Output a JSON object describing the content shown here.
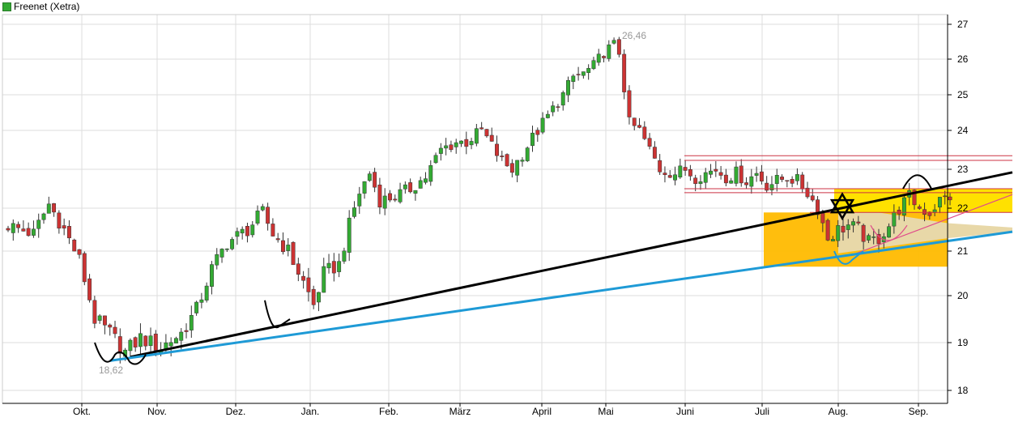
{
  "legend": {
    "label": "Freenet (Xetra)",
    "color": "#33aa33"
  },
  "chart_data": {
    "type": "candlestick",
    "title": "",
    "series_name": "Freenet (Xetra)",
    "colors": {
      "up": "#33aa33",
      "down": "#cc3333",
      "grid": "#dddddd",
      "support": "#1e9ad6",
      "trend": "#000000",
      "channel": "#cc3344",
      "fill_dark": "#ffbb00",
      "fill_light": "#ffe100",
      "fill_tan": "#e8d8a8"
    },
    "ylim": [
      17.8,
      27.3
    ],
    "y_ticks": [
      18,
      19,
      20,
      21,
      22,
      23,
      24,
      25,
      26,
      27
    ],
    "x_ticks": [
      "Okt.",
      "Nov.",
      "Dez.",
      "Jan.",
      "Feb.",
      "März",
      "April",
      "Mai",
      "Juni",
      "Juli",
      "Aug.",
      "Sep."
    ],
    "grid": true,
    "annotations": [
      {
        "text": "26,46",
        "type": "high"
      },
      {
        "text": "18,62",
        "type": "low"
      }
    ],
    "waypoints": [
      [
        0,
        21.6
      ],
      [
        5,
        21.4
      ],
      [
        8,
        22.1
      ],
      [
        11,
        21.5
      ],
      [
        14,
        20.8
      ],
      [
        17,
        19.5
      ],
      [
        20,
        19.2
      ],
      [
        23,
        18.8
      ],
      [
        26,
        19.1
      ],
      [
        30,
        18.9
      ],
      [
        34,
        19.2
      ],
      [
        37,
        19.7
      ],
      [
        40,
        20.6
      ],
      [
        43,
        21.2
      ],
      [
        47,
        21.5
      ],
      [
        50,
        21.9
      ],
      [
        52,
        21.4
      ],
      [
        55,
        21.0
      ],
      [
        58,
        20.3
      ],
      [
        60,
        19.8
      ],
      [
        62,
        20.5
      ],
      [
        65,
        20.7
      ],
      [
        67,
        21.6
      ],
      [
        69,
        22.4
      ],
      [
        71,
        22.9
      ],
      [
        73,
        22.2
      ],
      [
        76,
        22.3
      ],
      [
        79,
        22.5
      ],
      [
        82,
        22.8
      ],
      [
        85,
        23.5
      ],
      [
        88,
        23.7
      ],
      [
        90,
        23.7
      ],
      [
        93,
        24.0
      ],
      [
        95,
        23.6
      ],
      [
        97,
        23.2
      ],
      [
        99,
        23.0
      ],
      [
        101,
        23.4
      ],
      [
        103,
        23.8
      ],
      [
        105,
        24.2
      ],
      [
        107,
        24.6
      ],
      [
        109,
        25.0
      ],
      [
        111,
        25.5
      ],
      [
        113,
        25.6
      ],
      [
        115,
        25.8
      ],
      [
        117,
        26.2
      ],
      [
        119,
        26.4
      ],
      [
        120,
        26.2
      ],
      [
        121,
        25.2
      ],
      [
        122,
        24.2
      ],
      [
        124,
        24.0
      ],
      [
        126,
        23.5
      ],
      [
        128,
        23.0
      ],
      [
        131,
        22.9
      ],
      [
        133,
        23.0
      ],
      [
        135,
        22.8
      ],
      [
        137,
        22.9
      ],
      [
        139,
        23.0
      ],
      [
        141,
        22.8
      ],
      [
        143,
        22.9
      ],
      [
        145,
        22.7
      ],
      [
        147,
        22.9
      ],
      [
        149,
        22.6
      ],
      [
        151,
        22.7
      ],
      [
        153,
        22.8
      ],
      [
        155,
        22.7
      ],
      [
        157,
        22.4
      ],
      [
        159,
        22.0
      ],
      [
        161,
        21.3
      ],
      [
        163,
        21.5
      ],
      [
        165,
        21.6
      ],
      [
        167,
        21.5
      ],
      [
        169,
        21.2
      ],
      [
        171,
        21.3
      ],
      [
        173,
        21.6
      ],
      [
        175,
        22.0
      ],
      [
        177,
        22.3
      ],
      [
        179,
        22.0
      ],
      [
        181,
        21.9
      ],
      [
        183,
        22.2
      ],
      [
        185,
        22.3
      ]
    ],
    "trendlines": [
      {
        "name": "trend",
        "from": [
          18.7,
          24
        ],
        "to": [
          22.92,
          200
        ],
        "color": "trend"
      },
      {
        "name": "support",
        "from": [
          18.62,
          20
        ],
        "to": [
          21.45,
          200
        ],
        "color": "support"
      }
    ],
    "channel": {
      "upper": [
        23.35,
        23.25
      ],
      "lower": [
        22.5,
        22.42
      ]
    },
    "yellow_zone": {
      "upper": 22.5,
      "lower": 21.9
    }
  }
}
